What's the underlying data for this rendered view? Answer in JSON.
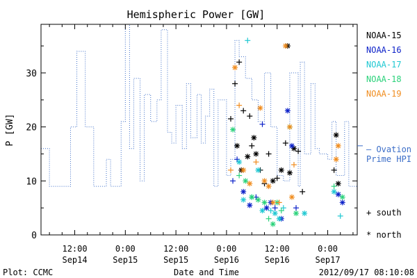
{
  "chart_data": {
    "type": "scatter",
    "title": "Hemispheric Power [GW]",
    "xlabel": "Date and Time",
    "ylabel": "P [GW]",
    "xlim": [
      "2012-09-14 04:00",
      "2012-09-17 07:00"
    ],
    "ylim": [
      0,
      39
    ],
    "ytick_values": [
      0,
      10,
      20,
      30
    ],
    "xticks": [
      {
        "t": "2012-09-14 12:00",
        "time": "12:00",
        "date": "Sep14"
      },
      {
        "t": "2012-09-15 00:00",
        "time": "0:00",
        "date": "Sep15"
      },
      {
        "t": "2012-09-15 12:00",
        "time": "12:00",
        "date": "Sep15"
      },
      {
        "t": "2012-09-16 00:00",
        "time": "0:00",
        "date": "Sep16"
      },
      {
        "t": "2012-09-16 12:00",
        "time": "12:00",
        "date": "Sep16"
      },
      {
        "t": "2012-09-17 00:00",
        "time": "0:00",
        "date": "Sep17"
      }
    ],
    "grid": false,
    "legend": {
      "title": "NOAA-15",
      "position": "right",
      "entries": [
        {
          "name": "NOAA-15",
          "color": "#000000"
        },
        {
          "name": "NOAA-16",
          "color": "#0a1fc8"
        },
        {
          "name": "NOAA-17",
          "color": "#1fc8d2"
        },
        {
          "name": "NOAA-18",
          "color": "#2ad27a"
        },
        {
          "name": "NOAA-19",
          "color": "#f08c1e"
        }
      ],
      "ovation_label_line1": "— Ovation",
      "ovation_label_line2": "Prime HPI",
      "ovation_color": "#3c6ec8",
      "south_label": "+ south",
      "north_label": "* north"
    },
    "ovation_series": {
      "name": "Ovation Prime HPI",
      "style": "dotted-step",
      "points": [
        [
          "2012-09-14 04:00",
          16
        ],
        [
          "2012-09-14 06:00",
          9
        ],
        [
          "2012-09-14 11:00",
          20
        ],
        [
          "2012-09-14 12:30",
          34
        ],
        [
          "2012-09-14 14:30",
          20
        ],
        [
          "2012-09-14 16:30",
          9
        ],
        [
          "2012-09-14 19:30",
          14
        ],
        [
          "2012-09-14 20:30",
          9
        ],
        [
          "2012-09-14 23:00",
          21
        ],
        [
          "2012-09-15 00:00",
          39
        ],
        [
          "2012-09-15 01:00",
          16
        ],
        [
          "2012-09-15 02:00",
          29
        ],
        [
          "2012-09-15 03:30",
          10
        ],
        [
          "2012-09-15 04:30",
          26
        ],
        [
          "2012-09-15 06:00",
          21
        ],
        [
          "2012-09-15 07:30",
          25
        ],
        [
          "2012-09-15 08:30",
          38
        ],
        [
          "2012-09-15 10:00",
          19
        ],
        [
          "2012-09-15 11:00",
          17
        ],
        [
          "2012-09-15 12:00",
          24
        ],
        [
          "2012-09-15 13:30",
          16
        ],
        [
          "2012-09-15 14:30",
          28
        ],
        [
          "2012-09-15 15:30",
          18
        ],
        [
          "2012-09-15 17:00",
          26
        ],
        [
          "2012-09-15 18:00",
          17
        ],
        [
          "2012-09-15 19:00",
          22
        ],
        [
          "2012-09-15 20:00",
          27
        ],
        [
          "2012-09-15 21:00",
          9
        ],
        [
          "2012-09-15 22:00",
          25
        ],
        [
          "2012-09-16 00:00",
          11
        ],
        [
          "2012-09-16 01:00",
          14
        ],
        [
          "2012-09-16 02:00",
          36
        ],
        [
          "2012-09-16 03:00",
          33
        ],
        [
          "2012-09-16 04:30",
          29
        ],
        [
          "2012-09-16 06:00",
          25
        ],
        [
          "2012-09-16 07:30",
          21
        ],
        [
          "2012-09-16 09:00",
          30
        ],
        [
          "2012-09-16 10:30",
          20
        ],
        [
          "2012-09-16 12:00",
          11
        ],
        [
          "2012-09-16 13:30",
          10
        ],
        [
          "2012-09-16 15:00",
          30
        ],
        [
          "2012-09-16 17:00",
          9
        ],
        [
          "2012-09-16 17:30",
          32
        ],
        [
          "2012-09-16 18:30",
          15
        ],
        [
          "2012-09-16 20:00",
          28
        ],
        [
          "2012-09-16 21:00",
          16
        ],
        [
          "2012-09-16 22:00",
          15
        ],
        [
          "2012-09-17 00:00",
          14
        ],
        [
          "2012-09-17 01:00",
          21
        ],
        [
          "2012-09-17 02:00",
          11
        ],
        [
          "2012-09-17 04:00",
          21
        ],
        [
          "2012-09-17 05:00",
          9
        ],
        [
          "2012-09-17 07:00",
          9
        ]
      ]
    },
    "series": [
      {
        "name": "NOAA-15",
        "color": "#000000",
        "points": [
          [
            "2012-09-16 01:00",
            21.5,
            "+"
          ],
          [
            "2012-09-16 02:00",
            28,
            "+"
          ],
          [
            "2012-09-16 02:30",
            16.5,
            "*"
          ],
          [
            "2012-09-16 03:00",
            32,
            "+"
          ],
          [
            "2012-09-16 03:30",
            12,
            "*"
          ],
          [
            "2012-09-16 04:00",
            23,
            "+"
          ],
          [
            "2012-09-16 05:00",
            14.5,
            "*"
          ],
          [
            "2012-09-16 05:30",
            22,
            "+"
          ],
          [
            "2012-09-16 06:00",
            16.5,
            "+"
          ],
          [
            "2012-09-16 06:30",
            18,
            "*"
          ],
          [
            "2012-09-16 07:00",
            15,
            "*"
          ],
          [
            "2012-09-16 08:00",
            12,
            "+"
          ],
          [
            "2012-09-16 09:00",
            9.5,
            "+"
          ],
          [
            "2012-09-16 10:00",
            15,
            "+"
          ],
          [
            "2012-09-16 11:00",
            10,
            "*"
          ],
          [
            "2012-09-16 12:00",
            10.5,
            "+"
          ],
          [
            "2012-09-16 13:00",
            12,
            "*"
          ],
          [
            "2012-09-16 14:00",
            17,
            "+"
          ],
          [
            "2012-09-16 14:30",
            35,
            "*"
          ],
          [
            "2012-09-16 15:00",
            11.5,
            "*"
          ],
          [
            "2012-09-16 16:00",
            16,
            "*"
          ],
          [
            "2012-09-16 17:00",
            15.5,
            "+"
          ],
          [
            "2012-09-16 18:00",
            8,
            "+"
          ],
          [
            "2012-09-17 02:00",
            18.5,
            "*"
          ],
          [
            "2012-09-17 02:30",
            9.5,
            "*"
          ],
          [
            "2012-09-17 01:30",
            12,
            "+"
          ]
        ]
      },
      {
        "name": "NOAA-16",
        "color": "#0a1fc8",
        "points": [
          [
            "2012-09-16 01:30",
            10,
            "+"
          ],
          [
            "2012-09-16 02:30",
            14,
            "+"
          ],
          [
            "2012-09-16 04:00",
            8,
            "*"
          ],
          [
            "2012-09-16 05:30",
            5.5,
            "*"
          ],
          [
            "2012-09-16 07:00",
            7,
            "+"
          ],
          [
            "2012-09-16 08:30",
            20.5,
            "+"
          ],
          [
            "2012-09-16 09:30",
            5,
            "*"
          ],
          [
            "2012-09-16 10:30",
            6,
            "*"
          ],
          [
            "2012-09-16 11:30",
            5,
            "+"
          ],
          [
            "2012-09-16 13:00",
            3,
            "*"
          ],
          [
            "2012-09-16 14:30",
            23,
            "*"
          ],
          [
            "2012-09-16 15:30",
            16.5,
            "*"
          ],
          [
            "2012-09-16 16:30",
            5,
            "+"
          ],
          [
            "2012-09-17 02:30",
            7.5,
            "*"
          ],
          [
            "2012-09-17 03:30",
            6,
            "*"
          ]
        ]
      },
      {
        "name": "NOAA-17",
        "color": "#1fc8d2",
        "points": [
          [
            "2012-09-16 03:00",
            13.5,
            "*"
          ],
          [
            "2012-09-16 04:00",
            6.5,
            "*"
          ],
          [
            "2012-09-16 05:00",
            36,
            "+"
          ],
          [
            "2012-09-16 06:00",
            7,
            "*"
          ],
          [
            "2012-09-16 07:30",
            12,
            "*"
          ],
          [
            "2012-09-16 08:30",
            4.5,
            "*"
          ],
          [
            "2012-09-16 10:30",
            4.5,
            "+"
          ],
          [
            "2012-09-16 11:30",
            4,
            "*"
          ],
          [
            "2012-09-16 12:30",
            3,
            "*"
          ],
          [
            "2012-09-16 13:30",
            5,
            "+"
          ],
          [
            "2012-09-16 18:30",
            4,
            "*"
          ],
          [
            "2012-09-17 01:30",
            8,
            "*"
          ],
          [
            "2012-09-17 03:00",
            3.5,
            "+"
          ]
        ]
      },
      {
        "name": "NOAA-18",
        "color": "#2ad27a",
        "points": [
          [
            "2012-09-16 01:30",
            19.5,
            "*"
          ],
          [
            "2012-09-16 03:00",
            11,
            "+"
          ],
          [
            "2012-09-16 04:30",
            10,
            "*"
          ],
          [
            "2012-09-16 06:00",
            7,
            "*"
          ],
          [
            "2012-09-16 07:30",
            6.5,
            "*"
          ],
          [
            "2012-09-16 09:00",
            6,
            "*"
          ],
          [
            "2012-09-16 10:00",
            3,
            "+"
          ],
          [
            "2012-09-16 11:00",
            2,
            "*"
          ],
          [
            "2012-09-16 12:00",
            6,
            "*"
          ],
          [
            "2012-09-16 13:00",
            4.5,
            "+"
          ],
          [
            "2012-09-16 15:00",
            20,
            "*"
          ],
          [
            "2012-09-16 16:30",
            4,
            "*"
          ],
          [
            "2012-09-17 01:30",
            9,
            "+"
          ],
          [
            "2012-09-17 03:30",
            7,
            "*"
          ]
        ]
      },
      {
        "name": "NOAA-19",
        "color": "#f08c1e",
        "points": [
          [
            "2012-09-16 01:00",
            12,
            "+"
          ],
          [
            "2012-09-16 02:00",
            31,
            "*"
          ],
          [
            "2012-09-16 03:00",
            24,
            "+"
          ],
          [
            "2012-09-16 04:00",
            12,
            "*"
          ],
          [
            "2012-09-16 05:30",
            9.5,
            "*"
          ],
          [
            "2012-09-16 07:00",
            13.5,
            "+"
          ],
          [
            "2012-09-16 08:00",
            23.5,
            "*"
          ],
          [
            "2012-09-16 09:00",
            10,
            "*"
          ],
          [
            "2012-09-16 10:00",
            9,
            "*"
          ],
          [
            "2012-09-16 11:00",
            6,
            "*"
          ],
          [
            "2012-09-16 12:30",
            6,
            "+"
          ],
          [
            "2012-09-16 14:00",
            35,
            "*"
          ],
          [
            "2012-09-16 15:00",
            20,
            "*"
          ],
          [
            "2012-09-16 15:30",
            7,
            "*"
          ],
          [
            "2012-09-16 16:00",
            13,
            "+"
          ],
          [
            "2012-09-17 02:00",
            14,
            "*"
          ],
          [
            "2012-09-17 02:30",
            16.5,
            "*"
          ]
        ]
      }
    ]
  },
  "footer": {
    "left": "Plot: CCMC",
    "right": "2012/09/17 08:10:08"
  }
}
